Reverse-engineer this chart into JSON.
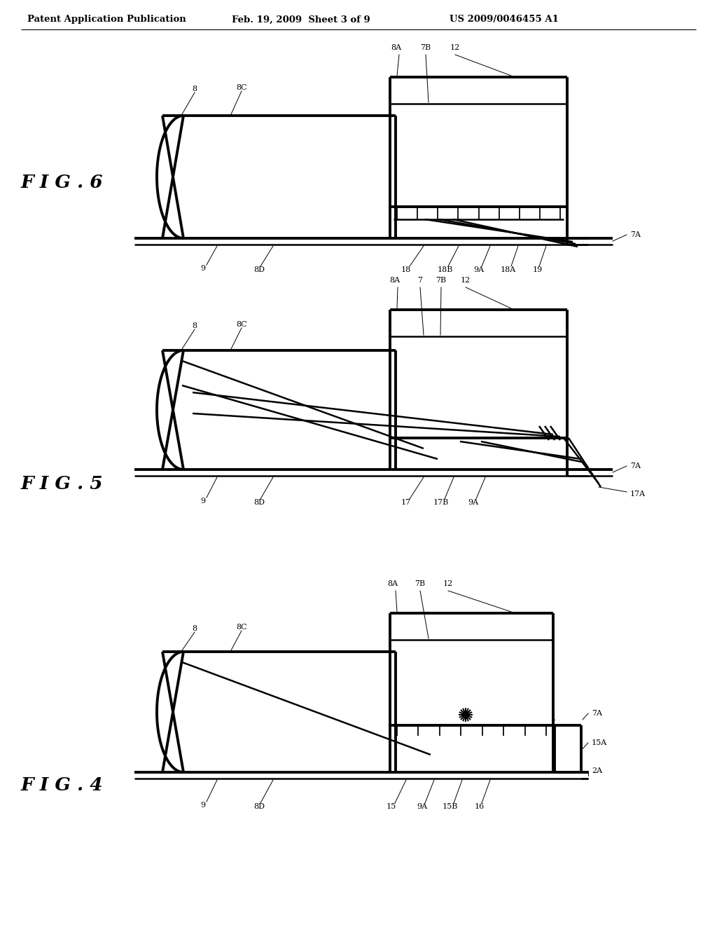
{
  "bg_color": "#ffffff",
  "header_text": "Patent Application Publication",
  "header_date": "Feb. 19, 2009  Sheet 3 of 9",
  "header_patent": "US 2009/0046455 A1",
  "lw": 1.8,
  "tlw": 2.8
}
